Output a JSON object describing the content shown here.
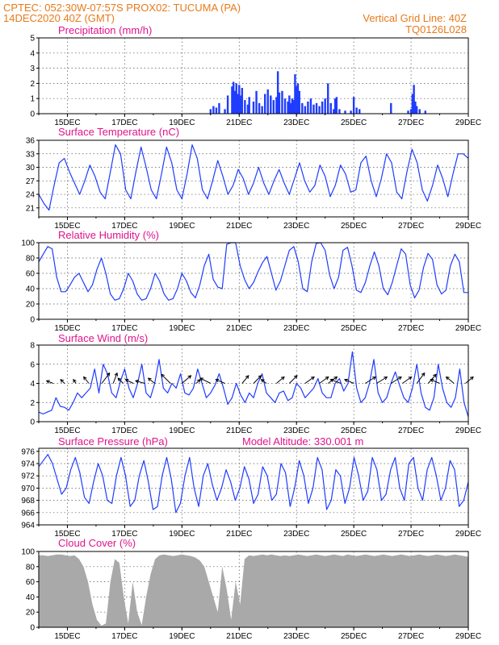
{
  "header": {
    "line1_left": "CPTEC:  052:30W-07:57S   PROX02: TUCUMA (PA)",
    "line2_left": "14DEC2020 40Z (GMT)",
    "line2_right": "Vertical Grid Line: 40Z",
    "line3_right": "TQ0126L028",
    "model_altitude": "Model Altitude: 330.001 m"
  },
  "colors": {
    "header": "#e87a1a",
    "title": "#e0148c",
    "series": "#1f3cff",
    "cloud": "#a9a9a9",
    "arrow": "#000000"
  },
  "x_ticks": [
    "15DEC",
    "17DEC",
    "19DEC",
    "21DEC",
    "23DEC",
    "25DEC",
    "27DEC",
    "29DEC"
  ],
  "chart_data": [
    {
      "type": "bar",
      "title": "Precipitation (mm/h)",
      "ylim": [
        0,
        5
      ],
      "yticks": [
        0,
        1,
        2,
        3,
        4,
        5
      ],
      "x_range_days": [
        14.0,
        29.0
      ],
      "x": [
        20.0,
        20.1,
        20.2,
        20.3,
        20.5,
        20.6,
        20.75,
        20.8,
        20.85,
        20.9,
        20.95,
        21.0,
        21.05,
        21.1,
        21.2,
        21.3,
        21.35,
        21.5,
        21.6,
        21.7,
        21.8,
        21.9,
        22.0,
        22.1,
        22.2,
        22.3,
        22.35,
        22.4,
        22.5,
        22.6,
        22.7,
        22.75,
        22.8,
        22.85,
        22.9,
        22.95,
        23.0,
        23.05,
        23.1,
        23.2,
        23.3,
        23.4,
        23.5,
        23.6,
        23.7,
        23.8,
        23.9,
        24.0,
        24.1,
        24.2,
        24.3,
        24.35,
        24.4,
        24.5,
        24.7,
        24.9,
        25.0,
        25.1,
        25.2,
        26.3,
        26.9,
        27.0,
        27.05,
        27.1,
        27.15,
        27.2,
        27.3,
        27.5
      ],
      "values": [
        0.3,
        0.5,
        0.4,
        0.7,
        0.3,
        1.2,
        1.8,
        2.1,
        1.5,
        2.0,
        1.3,
        1.9,
        1.2,
        1.7,
        0.9,
        0.6,
        1.1,
        0.8,
        1.5,
        0.7,
        0.5,
        1.3,
        1.6,
        1.2,
        0.9,
        1.1,
        2.8,
        1.4,
        1.5,
        1.0,
        0.8,
        1.2,
        0.7,
        1.0,
        0.9,
        2.6,
        1.8,
        2.0,
        1.5,
        0.7,
        0.5,
        0.8,
        1.0,
        0.6,
        0.7,
        0.5,
        0.8,
        1.0,
        2.0,
        0.7,
        0.3,
        1.0,
        1.1,
        0.3,
        0.2,
        0.2,
        1.1,
        0.4,
        0.3,
        0.7,
        0.2,
        0.3,
        1.3,
        1.9,
        0.8,
        0.5,
        0.3,
        0.2
      ]
    },
    {
      "type": "line",
      "title": "Surface Temperature (nC)",
      "ylim": [
        19,
        36
      ],
      "yticks": [
        21,
        24,
        27,
        30,
        33,
        36
      ],
      "x_range_days": [
        14.0,
        29.0
      ],
      "series": [
        {
          "values": [
            24,
            22,
            20.5,
            26,
            31,
            32,
            29,
            26.5,
            24,
            27,
            30.5,
            28,
            24.5,
            23,
            29,
            35,
            33,
            25,
            23,
            29,
            34.5,
            30,
            25,
            23,
            28.5,
            34.5,
            31,
            25,
            23,
            28.5,
            35,
            32,
            25,
            23,
            27,
            31.5,
            28,
            24,
            26,
            29.5,
            27.5,
            24,
            26.5,
            30,
            26.5,
            24,
            27,
            29.5,
            26.5,
            24,
            27.5,
            31,
            27,
            24.5,
            26,
            30.5,
            28,
            23.5,
            26,
            30.5,
            28.5,
            24.5,
            25,
            31,
            32.5,
            27,
            23.5,
            27.5,
            33,
            31,
            24.5,
            23,
            29,
            34,
            31,
            25,
            22.5,
            26,
            30.5,
            27.5,
            23.5,
            28.5,
            33,
            33,
            32
          ]
        }
      ]
    },
    {
      "type": "line",
      "title": "Relative Humidity (%)",
      "ylim": [
        0,
        100
      ],
      "yticks": [
        0,
        20,
        40,
        60,
        80,
        100
      ],
      "x_range_days": [
        14.0,
        29.0
      ],
      "series": [
        {
          "values": [
            75,
            85,
            95,
            92,
            55,
            36,
            36,
            45,
            55,
            60,
            48,
            36,
            45,
            65,
            80,
            60,
            33,
            25,
            27,
            40,
            60,
            50,
            33,
            25,
            27,
            40,
            60,
            50,
            33,
            25,
            27,
            40,
            60,
            50,
            35,
            28,
            45,
            70,
            85,
            52,
            42,
            40,
            98,
            100,
            100,
            70,
            52,
            40,
            48,
            62,
            74,
            82,
            60,
            38,
            50,
            70,
            90,
            95,
            75,
            40,
            36,
            75,
            99,
            100,
            90,
            58,
            40,
            55,
            90,
            94,
            70,
            38,
            35,
            48,
            70,
            88,
            70,
            40,
            32,
            48,
            70,
            92,
            85,
            45,
            28,
            38,
            68,
            86,
            78,
            45,
            33,
            38,
            70,
            85,
            75,
            35,
            35
          ]
        }
      ]
    },
    {
      "type": "line",
      "title": "Surface Wind (m/s)",
      "ylim": [
        0,
        8
      ],
      "yticks": [
        0,
        2,
        4,
        6,
        8
      ],
      "x_range_days": [
        14.0,
        29.0
      ],
      "series": [
        {
          "values": [
            1,
            0.8,
            1,
            1.2,
            2.5,
            1.6,
            1.5,
            1.2,
            2,
            3,
            2.5,
            3,
            3.5,
            5.5,
            3,
            6,
            5,
            3,
            2.5,
            4.2,
            5.5,
            3.5,
            2.5,
            4,
            6,
            3,
            2.5,
            4,
            6.5,
            3.5,
            3,
            4,
            3.5,
            5,
            3,
            2.8,
            3.5,
            5.5,
            4,
            2.5,
            3,
            3.8,
            5,
            3.5,
            1.8,
            2.5,
            4,
            2.8,
            2,
            3,
            2.5,
            4,
            5,
            3,
            2.5,
            2,
            3,
            3.2,
            2.2,
            2.5,
            4,
            3.5,
            2.5,
            3,
            3.5,
            4.5,
            3,
            2.5,
            2.5,
            4,
            4.5,
            3.2,
            4,
            7.3,
            3.5,
            2,
            2.5,
            4,
            6.5,
            3,
            2,
            2.5,
            4,
            5.2,
            3.8,
            2.5,
            2,
            3.5,
            6,
            3,
            1.5,
            1.2,
            2.5,
            6,
            3.5,
            2,
            1.5,
            2.5,
            5.5,
            2,
            0.5
          ]
        }
      ],
      "wind_arrows": {
        "x": [
          14.5,
          14.9,
          15.3,
          15.75,
          16.2,
          16.6,
          16.95,
          17.3,
          17.7,
          18.05,
          18.6,
          19.0,
          19.5,
          20.0,
          20.5,
          21.1,
          21.5,
          21.95,
          22.3,
          22.75,
          23.3,
          23.8,
          24.1,
          24.55,
          25.0,
          25.4,
          25.8,
          26.3,
          26.7,
          27.2,
          27.6,
          28.0,
          28.5,
          28.9
        ],
        "u": [
          -0.5,
          -0.3,
          -0.2,
          -0.4,
          0.6,
          0.3,
          -0.4,
          -0.6,
          -0.7,
          -0.5,
          -0.7,
          0.7,
          0.3,
          -0.8,
          -0.7,
          0.5,
          0.6,
          -0.4,
          0.6,
          0.6,
          0.7,
          0.7,
          0.7,
          -0.8,
          -0.7,
          0.8,
          0.8,
          0.8,
          0.7,
          0.6,
          0.6,
          -0.7,
          -0.6,
          0.6
        ],
        "v": [
          0.2,
          0.3,
          0.3,
          0.5,
          0.8,
          0.8,
          0.4,
          0.3,
          0.2,
          0.4,
          0.7,
          0.6,
          0.3,
          0.4,
          0.3,
          0.6,
          0.6,
          0.3,
          0.5,
          0.6,
          0.5,
          0.5,
          0.5,
          0.3,
          0.3,
          0.5,
          0.5,
          0.5,
          0.5,
          0.8,
          0.7,
          0.3,
          0.5,
          0.5
        ]
      }
    },
    {
      "type": "line",
      "title": "Surface Pressure (hPa)",
      "ylim": [
        964,
        976.5
      ],
      "yticks": [
        964,
        966,
        968,
        970,
        972,
        974,
        976
      ],
      "x_range_days": [
        14.0,
        29.0
      ],
      "series": [
        {
          "values": [
            973.5,
            974.5,
            975.5,
            974,
            971.5,
            969,
            970,
            973,
            975,
            972.5,
            968.5,
            967.5,
            971,
            974,
            972,
            968,
            967.5,
            972,
            975,
            972,
            967,
            968,
            972,
            974.5,
            971,
            966.5,
            967,
            972,
            975,
            971.5,
            966,
            967.5,
            972,
            975,
            970,
            967,
            972,
            974,
            970.5,
            968,
            970,
            973,
            971,
            968,
            970,
            973.5,
            971.5,
            967.5,
            969,
            973.5,
            972,
            968,
            969,
            974,
            972.5,
            967,
            970,
            974.5,
            972,
            967.5,
            970,
            975,
            973,
            966.5,
            968,
            973,
            972,
            967.5,
            970,
            975,
            972,
            968,
            969.5,
            975,
            973,
            968,
            969,
            973,
            975,
            970,
            968,
            974,
            975,
            970,
            968,
            973,
            975,
            972,
            968,
            970,
            974.5,
            973,
            967,
            968,
            971
          ]
        }
      ]
    },
    {
      "type": "area",
      "title": "Cloud Cover (%)",
      "ylim": [
        0,
        100
      ],
      "yticks": [
        0,
        20,
        40,
        60,
        80,
        100
      ],
      "x_range_days": [
        14.0,
        29.0
      ],
      "series": [
        {
          "values": [
            95,
            95,
            94,
            95,
            96,
            96,
            95,
            94,
            95,
            90,
            80,
            60,
            30,
            10,
            2,
            5,
            60,
            90,
            85,
            40,
            5,
            60,
            20,
            3,
            40,
            70,
            90,
            95,
            96,
            95,
            94,
            95,
            96,
            95,
            94,
            92,
            88,
            80,
            60,
            40,
            20,
            80,
            50,
            10,
            60,
            30,
            90,
            95,
            94,
            95,
            96,
            95,
            96,
            95,
            94,
            95,
            94,
            95,
            96,
            95,
            94,
            95,
            96,
            95,
            94,
            95,
            96,
            95,
            94,
            96,
            95,
            94,
            95,
            96,
            95,
            94,
            95,
            96,
            95,
            94,
            95,
            96,
            95,
            94,
            95,
            96,
            95,
            94,
            95,
            96,
            95,
            94,
            95,
            96,
            95,
            94,
            93
          ]
        }
      ]
    }
  ]
}
